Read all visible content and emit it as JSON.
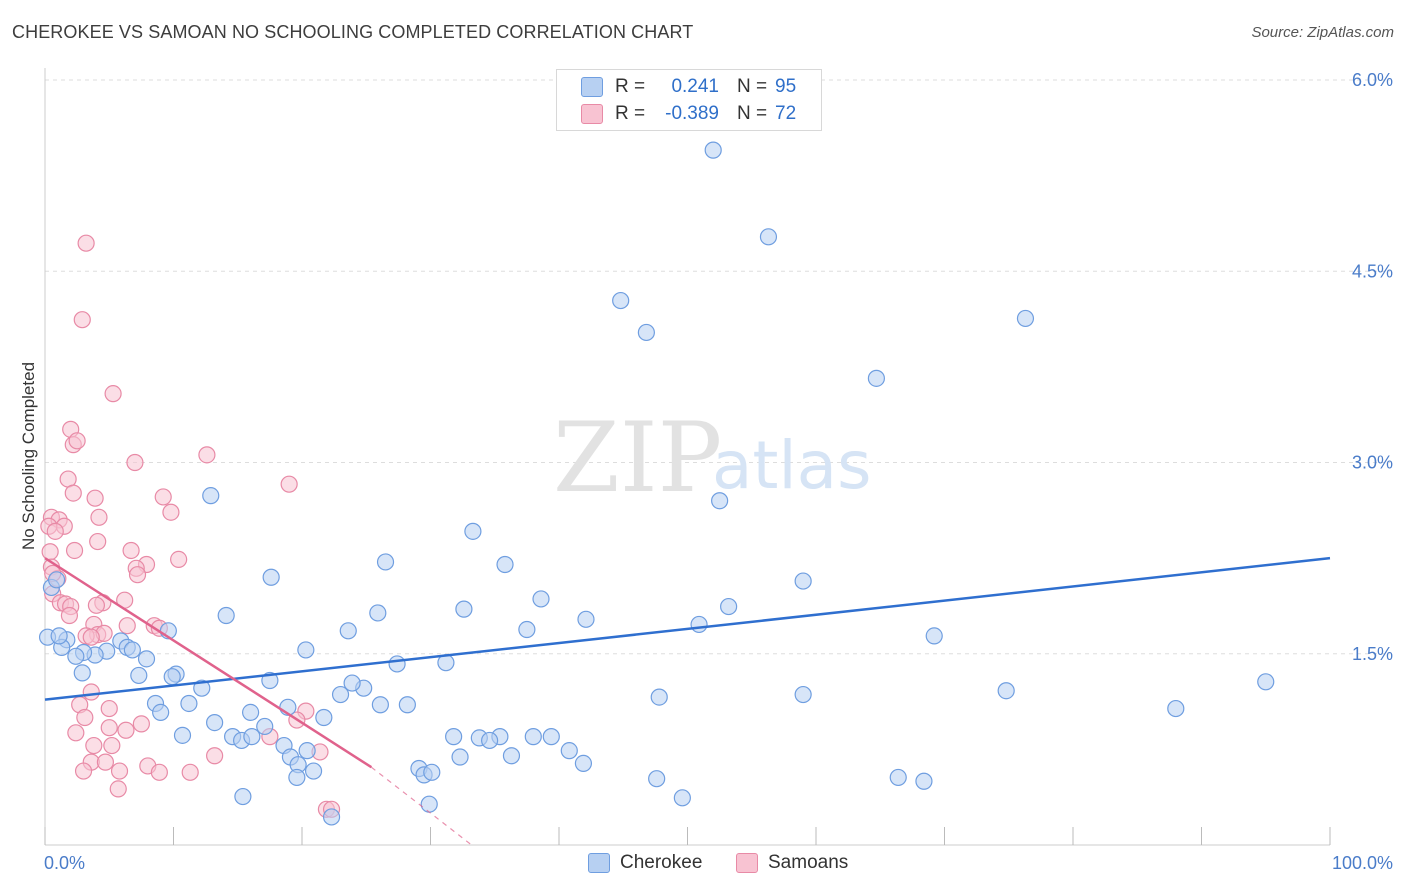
{
  "header": {
    "title": "CHEROKEE VS SAMOAN NO SCHOOLING COMPLETED CORRELATION CHART",
    "source": "Source: ZipAtlas.com"
  },
  "watermark": {
    "zip": "ZIP",
    "atlas": "atlas"
  },
  "colors": {
    "cherokee_fill": "#b7d0f2",
    "cherokee_stroke": "#6f9ee0",
    "cherokee_line": "#2f6fcf",
    "samoan_fill": "#f8c3d2",
    "samoan_stroke": "#e88aa6",
    "samoan_line": "#e0628c",
    "axis_text": "#4a7cc9",
    "grid": "#dddddd"
  },
  "legend": {
    "rows": [
      {
        "r_label": "R =",
        "r_value": "0.241",
        "n_label": "N =",
        "n_value": "95"
      },
      {
        "r_label": "R =",
        "r_value": "-0.389",
        "n_label": "N =",
        "n_value": "72"
      }
    ],
    "bottom": [
      "Cherokee",
      "Samoans"
    ]
  },
  "chart_data": {
    "type": "scatter",
    "title": "CHEROKEE VS SAMOAN NO SCHOOLING COMPLETED CORRELATION CHART",
    "xlabel": "",
    "ylabel": "No Schooling Completed",
    "xlim": [
      0,
      100
    ],
    "ylim": [
      0,
      6.2
    ],
    "x_tick_labels": [
      "0.0%",
      "100.0%"
    ],
    "y_ticks": [
      1.5,
      3.0,
      4.5,
      6.0
    ],
    "y_tick_labels": [
      "1.5%",
      "3.0%",
      "4.5%",
      "6.0%"
    ],
    "grid": true,
    "legend_position": "top-center",
    "series": [
      {
        "name": "Cherokee",
        "points": [
          [
            52.0,
            5.45
          ],
          [
            56.3,
            4.77
          ],
          [
            44.8,
            4.27
          ],
          [
            76.3,
            4.13
          ],
          [
            46.8,
            4.02
          ],
          [
            64.7,
            3.66
          ],
          [
            12.9,
            2.74
          ],
          [
            52.5,
            2.7
          ],
          [
            33.3,
            2.46
          ],
          [
            26.5,
            2.22
          ],
          [
            35.8,
            2.2
          ],
          [
            17.6,
            2.1
          ],
          [
            59.0,
            2.07
          ],
          [
            38.6,
            1.93
          ],
          [
            53.2,
            1.87
          ],
          [
            32.6,
            1.85
          ],
          [
            25.9,
            1.82
          ],
          [
            14.1,
            1.8
          ],
          [
            42.1,
            1.77
          ],
          [
            50.9,
            1.73
          ],
          [
            37.5,
            1.69
          ],
          [
            23.6,
            1.68
          ],
          [
            9.6,
            1.68
          ],
          [
            69.2,
            1.64
          ],
          [
            0.2,
            1.63
          ],
          [
            1.7,
            1.61
          ],
          [
            5.9,
            1.6
          ],
          [
            20.3,
            1.53
          ],
          [
            4.8,
            1.52
          ],
          [
            3.9,
            1.49
          ],
          [
            6.4,
            1.55
          ],
          [
            6.8,
            1.53
          ],
          [
            3.0,
            1.51
          ],
          [
            2.4,
            1.48
          ],
          [
            1.3,
            1.55
          ],
          [
            7.9,
            1.46
          ],
          [
            27.4,
            1.42
          ],
          [
            31.2,
            1.43
          ],
          [
            10.2,
            1.34
          ],
          [
            2.9,
            1.35
          ],
          [
            7.3,
            1.33
          ],
          [
            17.5,
            1.29
          ],
          [
            9.9,
            1.32
          ],
          [
            12.2,
            1.23
          ],
          [
            24.8,
            1.23
          ],
          [
            23.9,
            1.27
          ],
          [
            95.0,
            1.28
          ],
          [
            74.8,
            1.21
          ],
          [
            59.0,
            1.18
          ],
          [
            47.8,
            1.16
          ],
          [
            23.0,
            1.18
          ],
          [
            8.6,
            1.11
          ],
          [
            11.2,
            1.11
          ],
          [
            26.1,
            1.1
          ],
          [
            28.2,
            1.1
          ],
          [
            18.9,
            1.08
          ],
          [
            88.0,
            1.07
          ],
          [
            9.0,
            1.04
          ],
          [
            16.0,
            1.04
          ],
          [
            21.7,
            1.0
          ],
          [
            13.2,
            0.96
          ],
          [
            17.1,
            0.93
          ],
          [
            10.7,
            0.86
          ],
          [
            14.6,
            0.85
          ],
          [
            15.3,
            0.82
          ],
          [
            31.8,
            0.85
          ],
          [
            33.8,
            0.84
          ],
          [
            35.4,
            0.85
          ],
          [
            38.0,
            0.85
          ],
          [
            16.1,
            0.85
          ],
          [
            18.6,
            0.78
          ],
          [
            39.4,
            0.85
          ],
          [
            34.6,
            0.82
          ],
          [
            20.4,
            0.74
          ],
          [
            40.8,
            0.74
          ],
          [
            19.1,
            0.69
          ],
          [
            36.3,
            0.7
          ],
          [
            32.3,
            0.69
          ],
          [
            41.9,
            0.64
          ],
          [
            19.7,
            0.63
          ],
          [
            20.9,
            0.58
          ],
          [
            29.1,
            0.6
          ],
          [
            29.5,
            0.55
          ],
          [
            30.1,
            0.57
          ],
          [
            47.6,
            0.52
          ],
          [
            66.4,
            0.53
          ],
          [
            68.4,
            0.5
          ],
          [
            19.6,
            0.53
          ],
          [
            49.6,
            0.37
          ],
          [
            15.4,
            0.38
          ],
          [
            29.9,
            0.32
          ],
          [
            22.3,
            0.22
          ],
          [
            0.5,
            2.02
          ],
          [
            0.9,
            2.08
          ],
          [
            1.1,
            1.64
          ]
        ]
      },
      {
        "name": "Samoans",
        "points": [
          [
            3.2,
            4.72
          ],
          [
            2.9,
            4.12
          ],
          [
            5.3,
            3.54
          ],
          [
            2.0,
            3.26
          ],
          [
            2.2,
            3.14
          ],
          [
            2.5,
            3.17
          ],
          [
            12.6,
            3.06
          ],
          [
            7.0,
            3.0
          ],
          [
            1.8,
            2.87
          ],
          [
            19.0,
            2.83
          ],
          [
            2.2,
            2.76
          ],
          [
            9.2,
            2.73
          ],
          [
            3.9,
            2.72
          ],
          [
            9.8,
            2.61
          ],
          [
            4.2,
            2.57
          ],
          [
            0.5,
            2.57
          ],
          [
            1.1,
            2.55
          ],
          [
            1.5,
            2.5
          ],
          [
            0.3,
            2.5
          ],
          [
            0.8,
            2.46
          ],
          [
            4.1,
            2.38
          ],
          [
            2.3,
            2.31
          ],
          [
            6.7,
            2.31
          ],
          [
            0.4,
            2.3
          ],
          [
            10.4,
            2.24
          ],
          [
            7.9,
            2.2
          ],
          [
            0.5,
            2.18
          ],
          [
            7.1,
            2.17
          ],
          [
            7.2,
            2.12
          ],
          [
            1.0,
            2.09
          ],
          [
            0.6,
            1.97
          ],
          [
            6.2,
            1.92
          ],
          [
            4.5,
            1.9
          ],
          [
            4.0,
            1.88
          ],
          [
            1.2,
            1.9
          ],
          [
            1.6,
            1.89
          ],
          [
            2.0,
            1.87
          ],
          [
            1.9,
            1.8
          ],
          [
            3.8,
            1.73
          ],
          [
            6.4,
            1.72
          ],
          [
            8.5,
            1.72
          ],
          [
            8.9,
            1.7
          ],
          [
            4.1,
            1.65
          ],
          [
            4.6,
            1.66
          ],
          [
            3.2,
            1.64
          ],
          [
            3.6,
            1.63
          ],
          [
            3.6,
            1.2
          ],
          [
            2.7,
            1.1
          ],
          [
            20.3,
            1.05
          ],
          [
            5.0,
            1.07
          ],
          [
            19.6,
            0.98
          ],
          [
            3.1,
            1.0
          ],
          [
            7.5,
            0.95
          ],
          [
            5.0,
            0.92
          ],
          [
            6.3,
            0.9
          ],
          [
            2.4,
            0.88
          ],
          [
            17.5,
            0.85
          ],
          [
            5.2,
            0.78
          ],
          [
            3.8,
            0.78
          ],
          [
            13.2,
            0.7
          ],
          [
            21.4,
            0.73
          ],
          [
            3.6,
            0.65
          ],
          [
            4.7,
            0.65
          ],
          [
            8.0,
            0.62
          ],
          [
            3.0,
            0.58
          ],
          [
            5.8,
            0.58
          ],
          [
            8.9,
            0.57
          ],
          [
            11.3,
            0.57
          ],
          [
            5.7,
            0.44
          ],
          [
            21.9,
            0.28
          ],
          [
            22.3,
            0.28
          ],
          [
            0.6,
            2.13
          ]
        ]
      }
    ],
    "trend_lines": [
      {
        "series": "Cherokee",
        "x": [
          0,
          100
        ],
        "y": [
          1.14,
          2.25
        ]
      },
      {
        "series": "Samoans",
        "x": [
          0,
          25.4,
          33.2
        ],
        "y": [
          2.25,
          0.61,
          0.0
        ]
      }
    ]
  }
}
